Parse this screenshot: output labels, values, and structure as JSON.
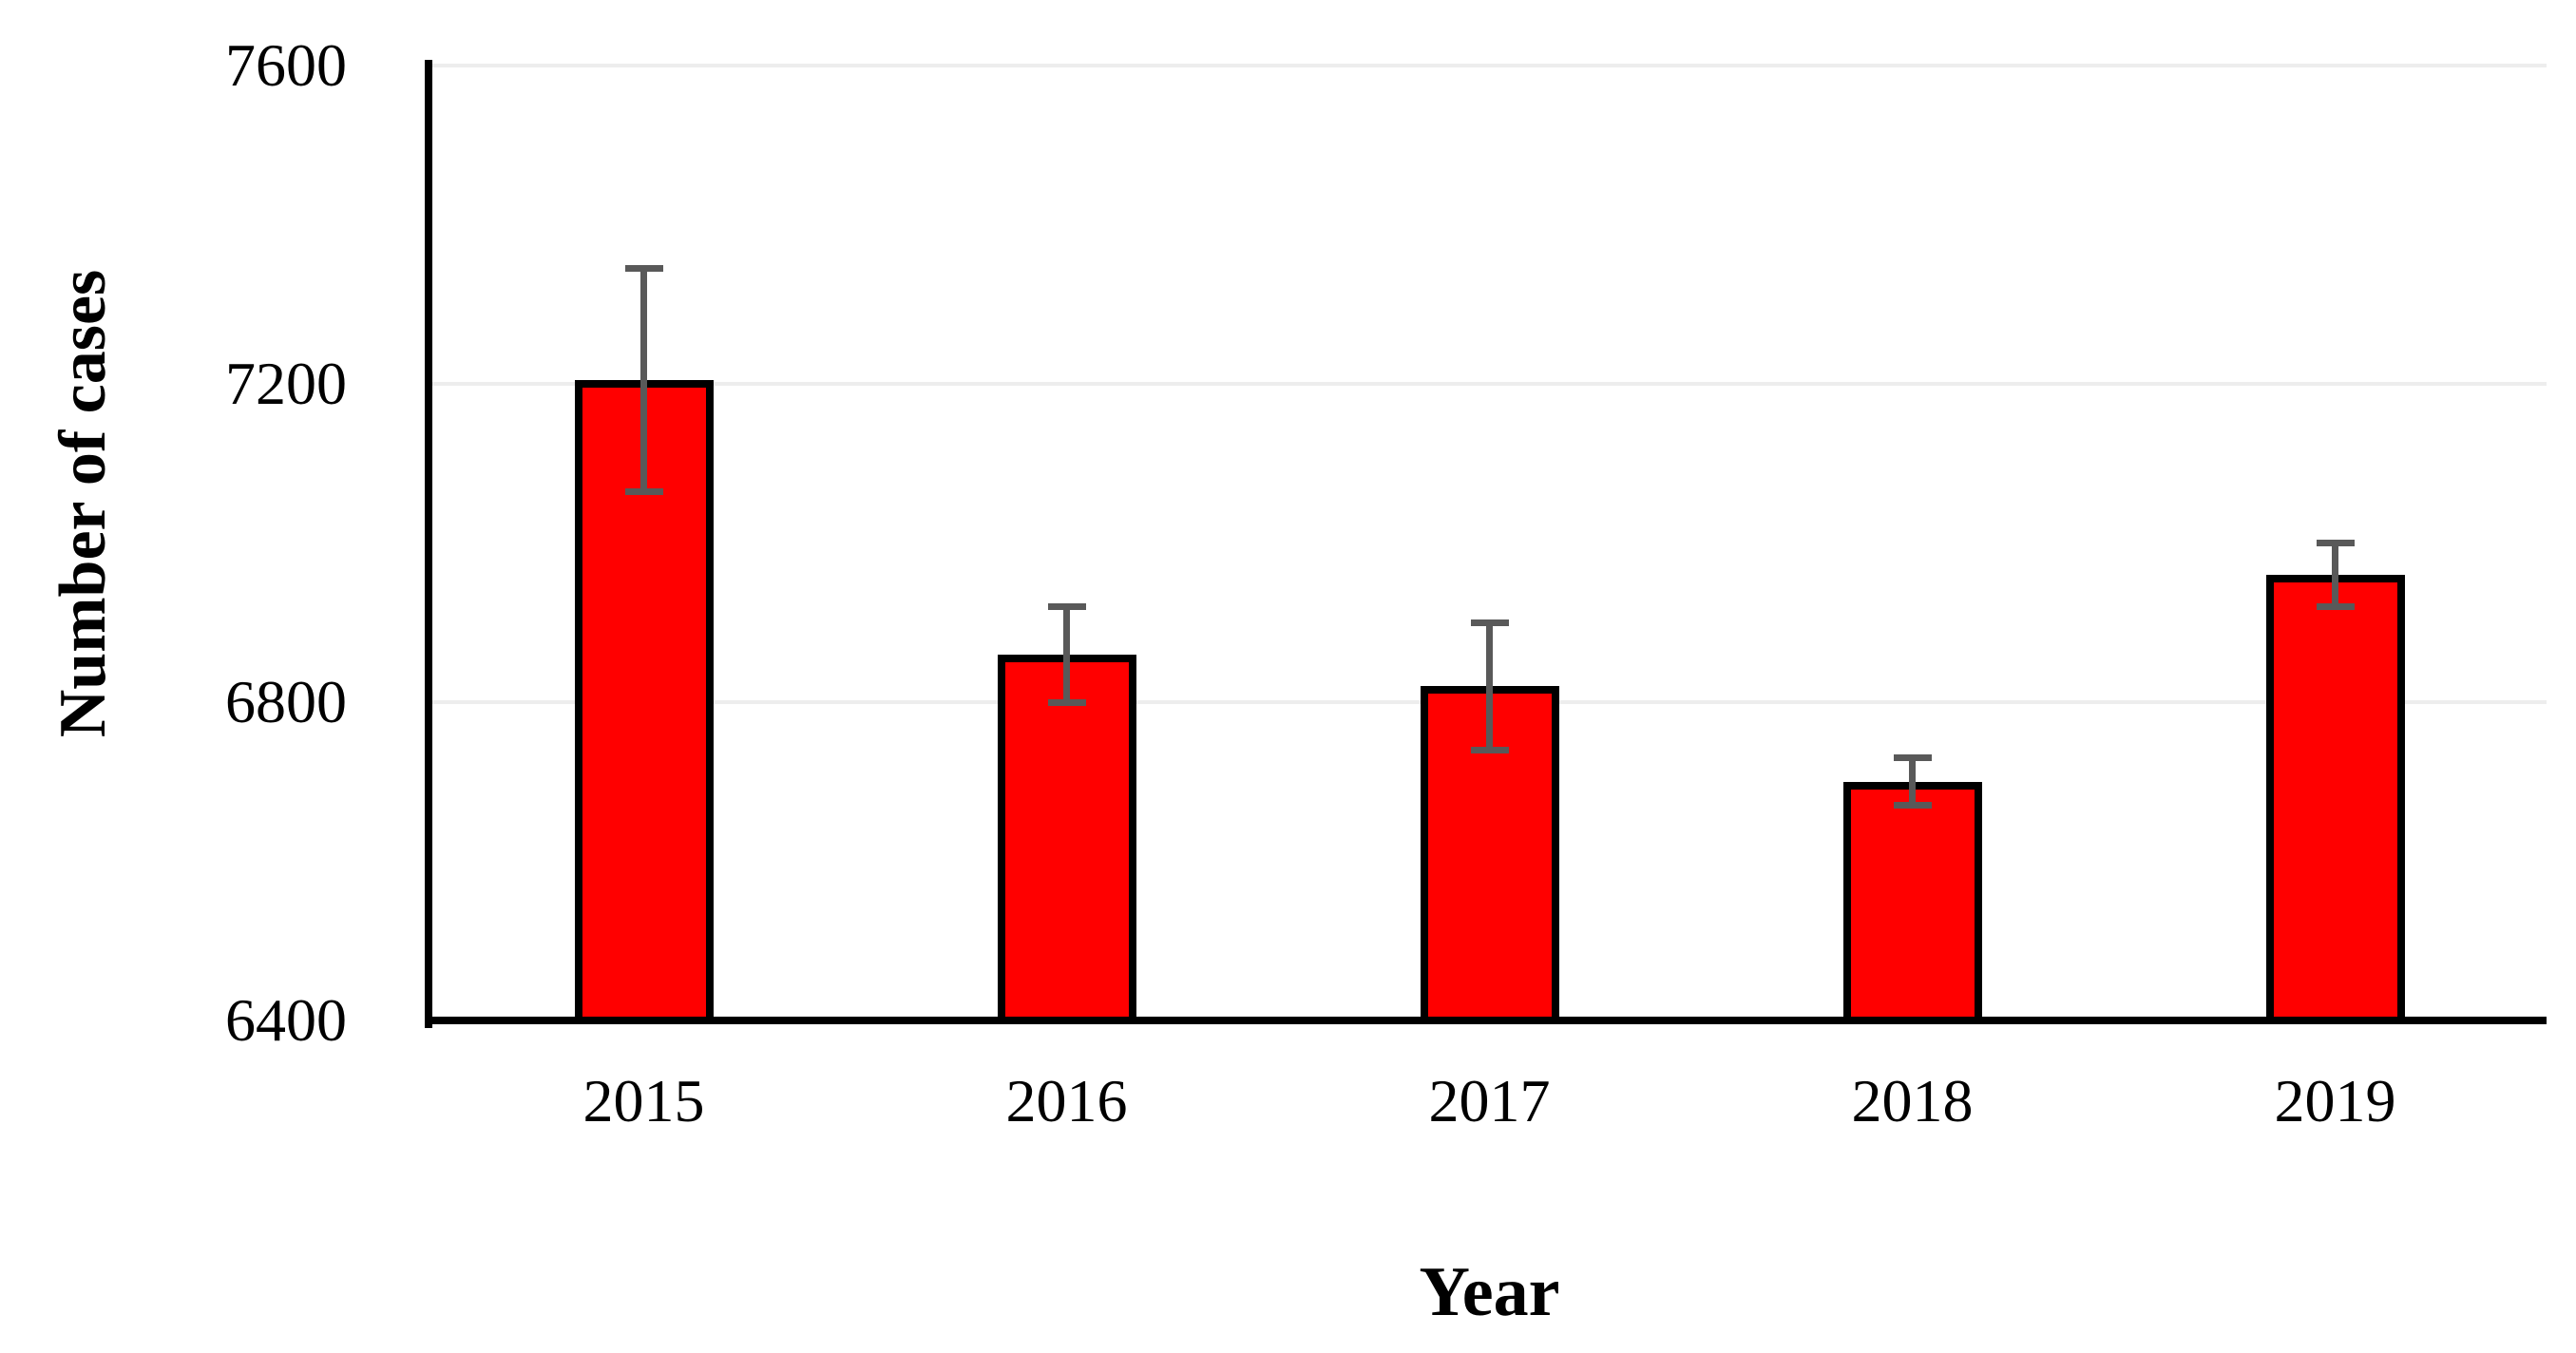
{
  "chart_data": {
    "type": "bar",
    "title": "",
    "xlabel": "Year",
    "ylabel": "Number of cases",
    "categories": [
      "2015",
      "2016",
      "2017",
      "2018",
      "2019"
    ],
    "values": [
      7205,
      6860,
      6820,
      6700,
      6960
    ],
    "error_bars": [
      140,
      60,
      80,
      30,
      40
    ],
    "ylim": [
      6400,
      7600
    ],
    "yticks": [
      6400,
      6800,
      7200,
      7600
    ],
    "grid": "horizontal-major",
    "legend": "none",
    "colors": {
      "bar_fill": "#ff0000",
      "bar_border": "#000000",
      "error_bar": "#595959",
      "gridline": "#ededed",
      "axis_line": "#000000",
      "text": "#000000"
    }
  }
}
